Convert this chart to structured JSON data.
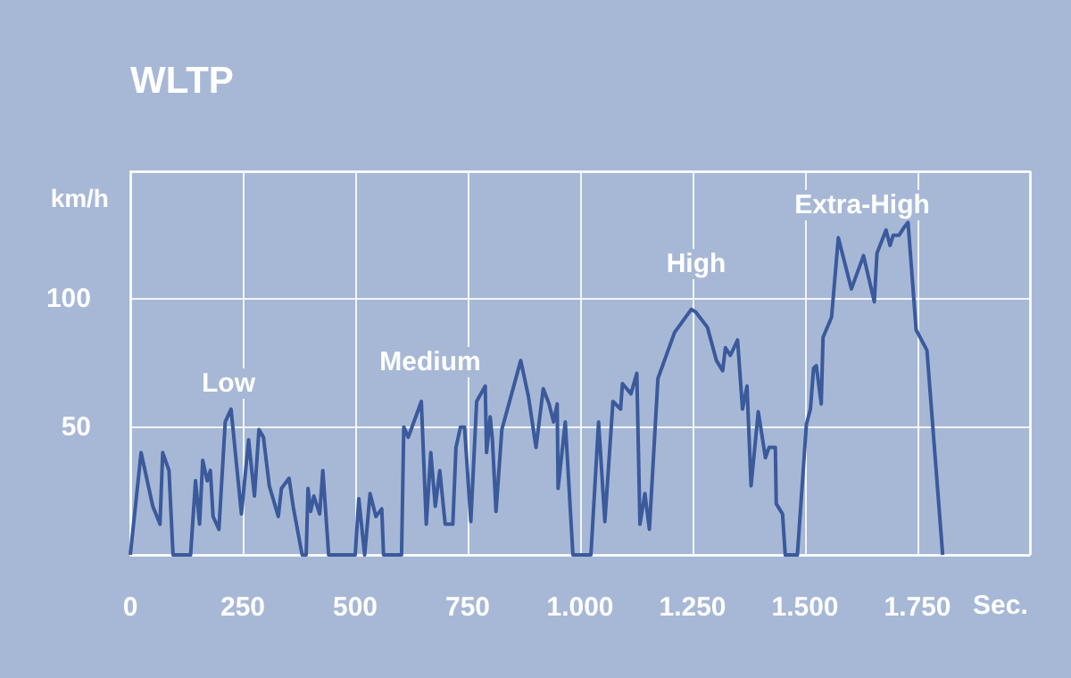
{
  "chart_data": {
    "type": "line",
    "title": "WLTP",
    "xlabel": "Sec.",
    "ylabel": "km/h",
    "xlim": [
      0,
      2000
    ],
    "xticks": [
      {
        "value": 0,
        "label": "0"
      },
      250,
      500,
      750,
      {
        "value": 1000,
        "label": "1.000"
      },
      {
        "value": 1250,
        "label": "1.250"
      },
      {
        "value": 1500,
        "label": "1.500"
      },
      {
        "value": 1750,
        "label": "1.750"
      },
      {
        "value": 2000,
        "label": null
      }
    ],
    "ylim": [
      0,
      150
    ],
    "yticks": [
      {
        "value": 0,
        "label": null
      },
      50,
      100,
      {
        "value": 150,
        "label": null
      }
    ],
    "grid": true,
    "marker": "none",
    "line_style": "solid",
    "annotations": [
      "Low",
      "Medium",
      "High",
      "Extra-High"
    ],
    "series": [
      {
        "color": "#3a5a9c",
        "x": [
          0,
          24,
          50,
          66,
          72,
          86,
          95,
          134,
          145,
          154,
          161,
          171,
          178,
          184,
          197,
          211,
          224,
          247,
          263,
          276,
          286,
          296,
          309,
          329,
          336,
          353,
          362,
          382,
          391,
          395,
          401,
          408,
          421,
          428,
          441,
          500,
          508,
          521,
          533,
          546,
          559,
          563,
          603,
          608,
          618,
          647,
          658,
          668,
          678,
          688,
          700,
          717,
          724,
          734,
          743,
          757,
          770,
          789,
          792,
          800,
          805,
          813,
          826,
          868,
          885,
          902,
          918,
          931,
          941,
          949,
          951,
          967,
          984,
          1024,
          1041,
          1055,
          1073,
          1090,
          1094,
          1113,
          1126,
          1133,
          1144,
          1154,
          1173,
          1210,
          1247,
          1257,
          1283,
          1303,
          1317,
          1323,
          1334,
          1350,
          1361,
          1371,
          1380,
          1396,
          1412,
          1420,
          1434,
          1436,
          1450,
          1456,
          1483,
          1503,
          1512,
          1519,
          1525,
          1536,
          1540,
          1559,
          1574,
          1603,
          1630,
          1654,
          1660,
          1680,
          1689,
          1696,
          1709,
          1720,
          1729,
          1747,
          1771,
          1806
        ],
        "values": [
          0,
          40,
          19,
          12,
          40,
          33,
          0,
          0,
          29,
          12,
          37,
          29,
          33,
          15,
          10,
          52,
          57,
          16,
          45,
          23,
          49,
          46,
          27,
          15,
          26,
          30,
          19,
          0,
          0,
          26,
          17,
          23,
          16,
          33,
          0,
          0,
          22,
          0,
          24,
          15,
          18,
          0,
          0,
          50,
          46,
          60,
          12,
          40,
          19,
          33,
          12,
          12,
          42,
          50,
          50,
          13,
          60,
          66,
          40,
          54,
          45,
          17,
          49,
          76,
          62,
          42,
          65,
          59,
          52,
          59,
          26,
          52,
          0,
          0,
          52,
          13,
          60,
          57,
          67,
          63,
          71,
          12,
          24,
          10,
          69,
          87,
          96,
          95,
          89,
          76,
          72,
          81,
          78,
          84,
          57,
          66,
          27,
          56,
          38,
          42,
          42,
          20,
          16,
          0,
          0,
          51,
          57,
          73,
          74,
          59,
          85,
          93,
          124,
          104,
          117,
          99,
          118,
          127,
          121,
          125,
          125,
          128,
          130,
          88,
          80,
          0
        ]
      }
    ]
  }
}
